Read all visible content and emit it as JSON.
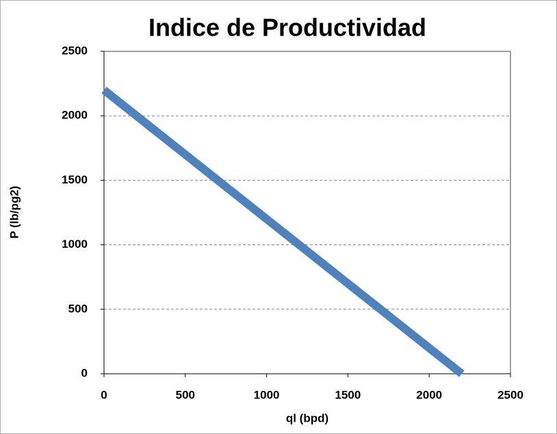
{
  "chart_data": {
    "type": "line",
    "title": "Indice de Productividad",
    "x_label": "ql (bpd)",
    "y_label": "P (lb/pg2)",
    "x": [
      0,
      2200
    ],
    "series": [
      {
        "name": "P",
        "color": "#4f81bd",
        "values": [
          2200,
          0
        ]
      }
    ],
    "xlim": [
      0,
      2500
    ],
    "xticks": [
      0,
      500,
      1000,
      1500,
      2000,
      2500
    ],
    "ylim": [
      0,
      2500
    ],
    "yticks": [
      0,
      500,
      1000,
      1500,
      2000,
      2500
    ],
    "grid": true
  }
}
